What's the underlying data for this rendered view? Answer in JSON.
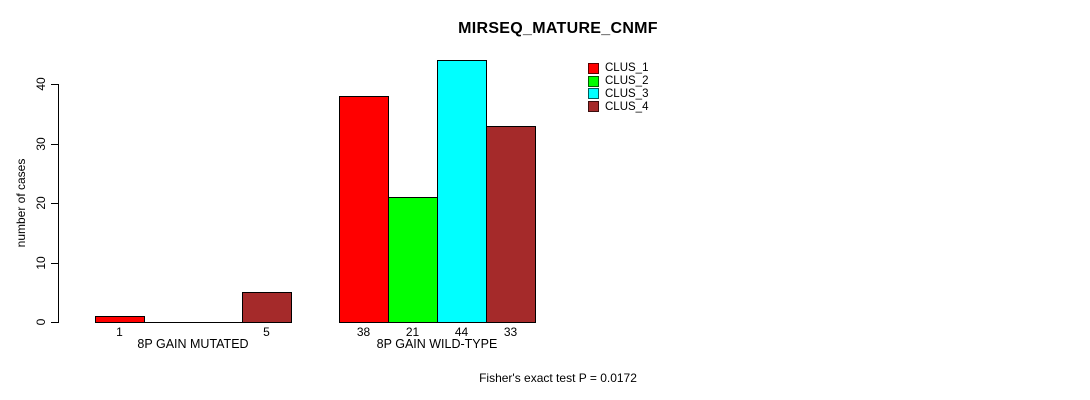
{
  "title": "MIRSEQ_MATURE_CNMF",
  "footer": "Fisher's exact test P = 0.0172",
  "chart_data": {
    "type": "bar",
    "title": "MIRSEQ_MATURE_CNMF",
    "xlabel": "",
    "ylabel": "number of cases",
    "ylim": [
      0,
      44
    ],
    "yticks": [
      0,
      10,
      20,
      30,
      40
    ],
    "grid": false,
    "legend_position": "top-right",
    "categories": [
      "8P GAIN MUTATED",
      "8P GAIN WILD-TYPE"
    ],
    "series": [
      {
        "name": "CLUS_1",
        "color": "#FF0000",
        "values": [
          1,
          38
        ]
      },
      {
        "name": "CLUS_2",
        "color": "#00FF00",
        "values": [
          0,
          21
        ]
      },
      {
        "name": "CLUS_3",
        "color": "#00FFFF",
        "values": [
          0,
          44
        ]
      },
      {
        "name": "CLUS_4",
        "color": "#A52A2A",
        "values": [
          5,
          33
        ]
      }
    ],
    "bar_value_labels": [
      [
        "1",
        "",
        "",
        "5"
      ],
      [
        "38",
        "21",
        "44",
        "33"
      ]
    ],
    "annotation": "Fisher's exact test P = 0.0172"
  }
}
